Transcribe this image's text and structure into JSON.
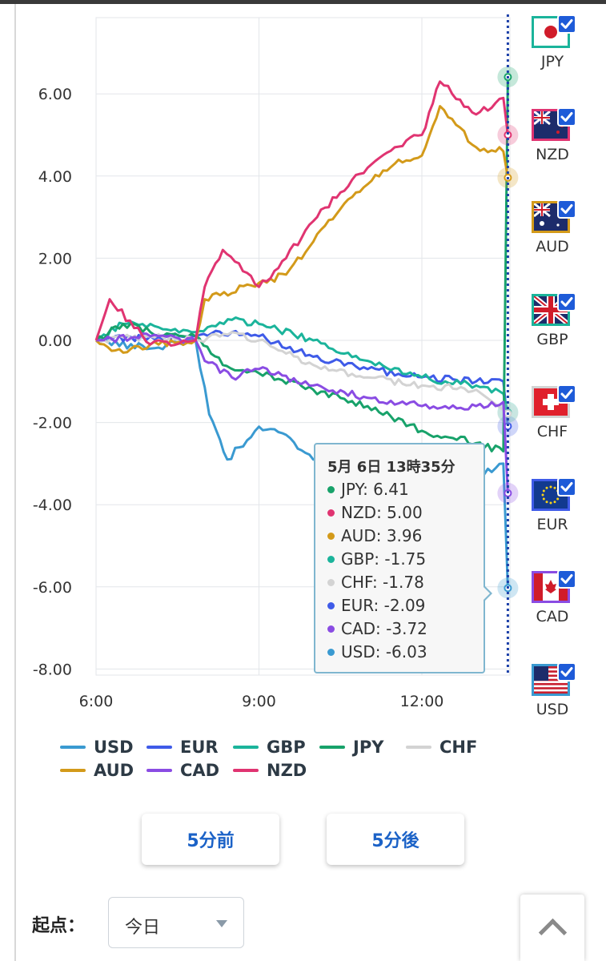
{
  "chart_data": {
    "type": "line",
    "x_ticks": [
      "6:00",
      "9:00",
      "12:00"
    ],
    "y_ticks": [
      "6.00",
      "4.00",
      "2.00",
      "0.00",
      "-2.00",
      "-4.00",
      "-6.00",
      "-8.00"
    ],
    "ylim": [
      -8.2,
      8.2
    ],
    "xlim": [
      "6:00",
      "13:35"
    ],
    "grid": true,
    "legend_position": "bottom",
    "series": [
      {
        "name": "USD",
        "color": "#3a9ad1",
        "x": [
          "6:00",
          "7:00",
          "7:50",
          "8:05",
          "8:25",
          "9:00",
          "9:30",
          "10:00",
          "11:00",
          "12:00",
          "13:00",
          "13:30",
          "13:35"
        ],
        "values": [
          0.0,
          -0.2,
          0.0,
          -1.8,
          -2.9,
          -2.1,
          -2.3,
          -2.9,
          -3.1,
          -3.3,
          -3.3,
          -3.0,
          -6.03
        ]
      },
      {
        "name": "EUR",
        "color": "#3f5be8",
        "x": [
          "6:00",
          "7:00",
          "7:50",
          "8:30",
          "9:00",
          "10:00",
          "11:00",
          "12:00",
          "13:00",
          "13:30",
          "13:35"
        ],
        "values": [
          0.0,
          0.1,
          0.1,
          0.2,
          0.1,
          -0.4,
          -0.7,
          -0.9,
          -1.0,
          -1.0,
          -2.09
        ]
      },
      {
        "name": "GBP",
        "color": "#1bb49b",
        "x": [
          "6:00",
          "6:30",
          "7:00",
          "7:50",
          "8:30",
          "9:00",
          "10:00",
          "11:00",
          "12:00",
          "13:00",
          "13:30",
          "13:35"
        ],
        "values": [
          0.0,
          0.4,
          0.4,
          0.2,
          0.5,
          0.4,
          0.0,
          -0.5,
          -0.9,
          -1.1,
          -1.3,
          -1.75
        ]
      },
      {
        "name": "JPY",
        "color": "#18a26a",
        "x": [
          "6:00",
          "6:30",
          "7:00",
          "7:50",
          "8:20",
          "9:00",
          "10:00",
          "11:00",
          "12:00",
          "13:00",
          "13:30",
          "13:35"
        ],
        "values": [
          0.0,
          0.4,
          0.2,
          0.1,
          -0.6,
          -0.8,
          -1.2,
          -1.6,
          -2.2,
          -2.5,
          -2.7,
          6.41
        ]
      },
      {
        "name": "CHF",
        "color": "#d3d3d3",
        "x": [
          "6:00",
          "7:00",
          "7:50",
          "8:30",
          "9:00",
          "10:00",
          "11:00",
          "12:00",
          "13:00",
          "13:35"
        ],
        "values": [
          0.0,
          0.1,
          0.0,
          0.2,
          0.0,
          -0.6,
          -0.9,
          -1.1,
          -1.2,
          -1.78
        ]
      },
      {
        "name": "AUD",
        "color": "#d39a1a",
        "x": [
          "6:00",
          "6:30",
          "7:00",
          "7:50",
          "8:00",
          "9:00",
          "9:30",
          "10:00",
          "10:30",
          "11:00",
          "11:30",
          "12:00",
          "12:20",
          "13:00",
          "13:30",
          "13:35"
        ],
        "values": [
          0.0,
          -0.3,
          -0.1,
          0.0,
          1.0,
          1.4,
          1.6,
          2.4,
          3.2,
          3.8,
          4.3,
          4.5,
          5.7,
          4.7,
          4.6,
          3.96
        ]
      },
      {
        "name": "CAD",
        "color": "#8a4ce3",
        "x": [
          "6:00",
          "7:00",
          "7:50",
          "8:00",
          "8:30",
          "9:00",
          "10:00",
          "11:00",
          "12:00",
          "13:00",
          "13:30",
          "13:35"
        ],
        "values": [
          0.0,
          0.1,
          0.0,
          -0.5,
          -0.9,
          -0.7,
          -1.1,
          -1.4,
          -1.6,
          -1.6,
          -1.5,
          -3.72
        ]
      },
      {
        "name": "NZD",
        "color": "#e03471",
        "x": [
          "6:00",
          "6:15",
          "7:00",
          "7:50",
          "8:00",
          "8:20",
          "9:00",
          "9:30",
          "10:00",
          "10:30",
          "11:00",
          "11:30",
          "12:00",
          "12:20",
          "13:00",
          "13:30",
          "13:35"
        ],
        "values": [
          0.0,
          1.0,
          -0.1,
          0.0,
          1.3,
          2.2,
          1.3,
          2.0,
          2.9,
          3.6,
          4.2,
          4.7,
          5.0,
          6.3,
          5.5,
          5.9,
          5.0
        ]
      }
    ]
  },
  "tooltip": {
    "title": "5月 6日 13時35分",
    "rows": [
      {
        "text": "JPY: 6.41",
        "color": "#18a26a"
      },
      {
        "text": "NZD: 5.00",
        "color": "#e03471"
      },
      {
        "text": "AUD: 3.96",
        "color": "#d39a1a"
      },
      {
        "text": "GBP: -1.75",
        "color": "#1bb49b"
      },
      {
        "text": "CHF: -1.78",
        "color": "#d3d3d3"
      },
      {
        "text": "EUR: -2.09",
        "color": "#3f5be8"
      },
      {
        "text": "CAD: -3.72",
        "color": "#8a4ce3"
      },
      {
        "text": "USD: -6.03",
        "color": "#3a9ad1"
      }
    ]
  },
  "flags": [
    {
      "code": "JPY",
      "border": "#1bb49b",
      "checked": true
    },
    {
      "code": "NZD",
      "border": "#e03471",
      "checked": true
    },
    {
      "code": "AUD",
      "border": "#d39a1a",
      "checked": true
    },
    {
      "code": "GBP",
      "border": "#1bb49b",
      "checked": true
    },
    {
      "code": "CHF",
      "border": "#d3d3d3",
      "checked": true
    },
    {
      "code": "EUR",
      "border": "#3f5be8",
      "checked": true
    },
    {
      "code": "CAD",
      "border": "#8a4ce3",
      "checked": true
    },
    {
      "code": "USD",
      "border": "#3a9ad1",
      "checked": true
    }
  ],
  "buttons": {
    "prev": "5分前",
    "next": "5分後"
  },
  "origin": {
    "label": "起点：",
    "value": "今日"
  }
}
